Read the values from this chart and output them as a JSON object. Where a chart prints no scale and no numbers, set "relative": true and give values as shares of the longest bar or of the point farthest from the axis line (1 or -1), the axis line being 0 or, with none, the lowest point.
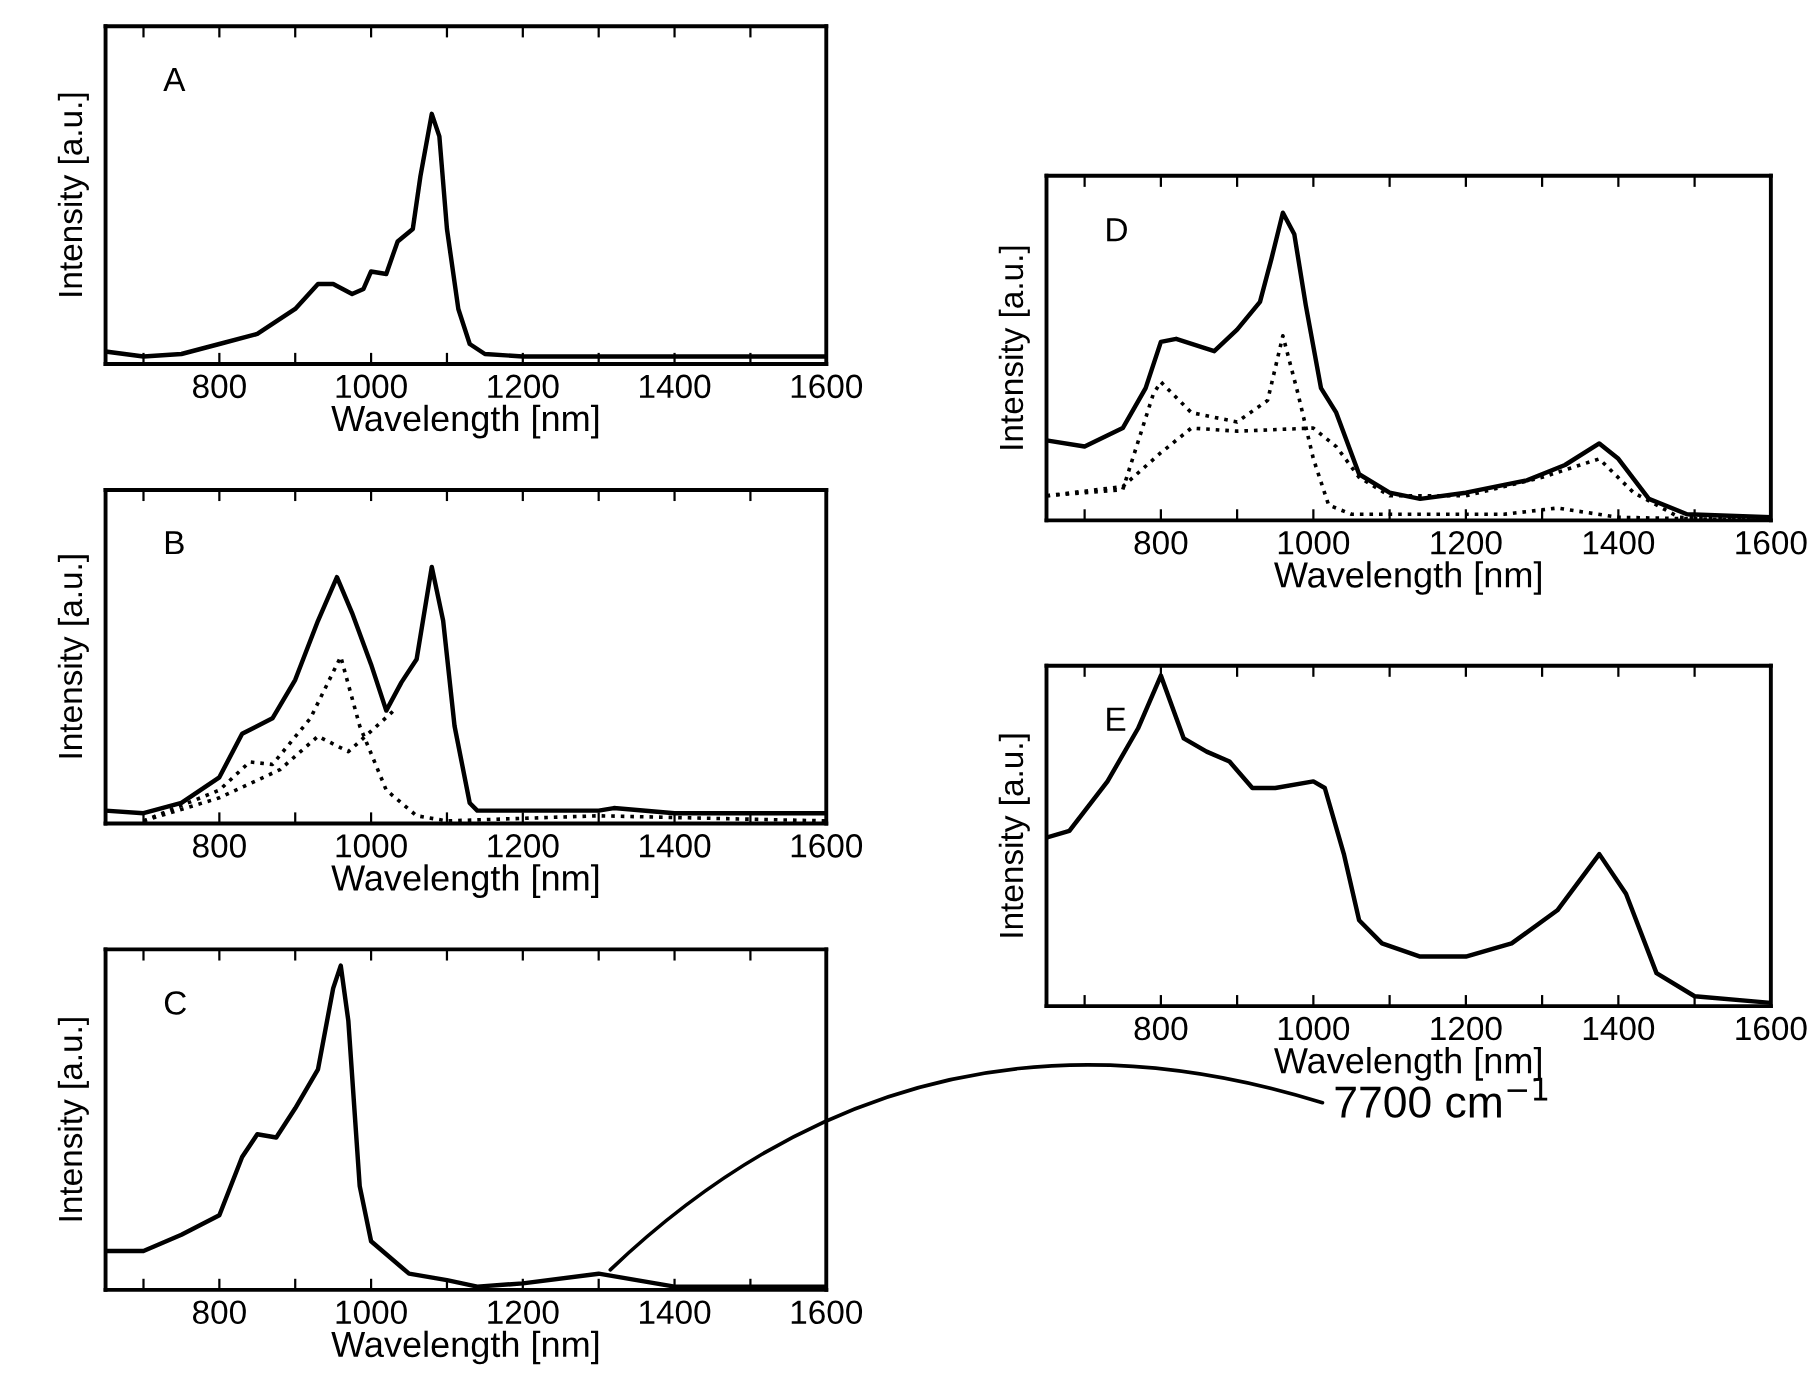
{
  "chart_data": [
    {
      "type": "line",
      "relative": true,
      "annotations": [
        "A"
      ],
      "xlabel": "Wavelength [nm]",
      "ylabel": "Intensity [a.u.]",
      "xlim": [
        650,
        1600
      ],
      "xticks": [
        {
          "value": 700,
          "label": null
        },
        800,
        {
          "value": 900,
          "label": null
        },
        1000,
        {
          "value": 1100,
          "label": null
        },
        1200,
        {
          "value": 1300,
          "label": null
        },
        1400,
        {
          "value": 1500,
          "label": null
        },
        1600
      ],
      "tick_labels": "x",
      "series": [
        {
          "color": "#000000",
          "line_style": "solid",
          "x": [
            650,
            700,
            750,
            800,
            850,
            900,
            930,
            950,
            975,
            990,
            1000,
            1020,
            1035,
            1055,
            1065,
            1080,
            1090,
            1100,
            1115,
            1130,
            1150,
            1200,
            1600
          ],
          "values": [
            0.05,
            0.03,
            0.04,
            0.08,
            0.12,
            0.22,
            0.32,
            0.32,
            0.28,
            0.3,
            0.37,
            0.36,
            0.49,
            0.54,
            0.75,
            1,
            0.91,
            0.54,
            0.22,
            0.08,
            0.04,
            0.03,
            0.03
          ]
        }
      ]
    },
    {
      "type": "line",
      "relative": true,
      "annotations": [
        "B"
      ],
      "xlabel": "Wavelength [nm]",
      "ylabel": "Intensity [a.u.]",
      "xlim": [
        650,
        1600
      ],
      "xticks": [
        {
          "value": 700,
          "label": null
        },
        800,
        {
          "value": 900,
          "label": null
        },
        1000,
        {
          "value": 1100,
          "label": null
        },
        1200,
        {
          "value": 1300,
          "label": null
        },
        1400,
        {
          "value": 1500,
          "label": null
        },
        1600
      ],
      "tick_labels": "x",
      "series": [
        {
          "color": "#000000",
          "line_style": "solid",
          "x": [
            650,
            700,
            750,
            800,
            830,
            870,
            900,
            930,
            955,
            975,
            1000,
            1020,
            1040,
            1060,
            1080,
            1095,
            1110,
            1130,
            1140,
            1300,
            1320,
            1400,
            1600
          ],
          "values": [
            0.05,
            0.04,
            0.08,
            0.18,
            0.35,
            0.41,
            0.56,
            0.79,
            0.96,
            0.82,
            0.62,
            0.44,
            0.55,
            0.64,
            1,
            0.79,
            0.38,
            0.08,
            0.05,
            0.05,
            0.06,
            0.04,
            0.04
          ]
        },
        {
          "color": "#000000",
          "line_style": "dotted",
          "x": [
            700,
            800,
            840,
            870,
            920,
            960,
            985,
            1020,
            1060,
            1100,
            1300,
            1600
          ],
          "values": [
            0.01,
            0.13,
            0.24,
            0.23,
            0.41,
            0.65,
            0.38,
            0.13,
            0.03,
            0.01,
            0.03,
            0.01
          ]
        },
        {
          "color": "#000000",
          "line_style": "dotted",
          "x": [
            700,
            800,
            880,
            930,
            970,
            1000,
            1030
          ],
          "values": [
            0.01,
            0.1,
            0.21,
            0.34,
            0.28,
            0.36,
            0.44
          ]
        }
      ]
    },
    {
      "type": "line",
      "relative": true,
      "annotations": [
        "C",
        {
          "text": "7700 cm$^{−1}$",
          "x": 1310,
          "y": 0.05
        }
      ],
      "xlabel": "Wavelength [nm]",
      "ylabel": "Intensity [a.u.]",
      "xlim": [
        650,
        1600
      ],
      "xticks": [
        {
          "value": 700,
          "label": null
        },
        800,
        {
          "value": 900,
          "label": null
        },
        1000,
        {
          "value": 1100,
          "label": null
        },
        1200,
        {
          "value": 1300,
          "label": null
        },
        1400,
        {
          "value": 1500,
          "label": null
        },
        1600
      ],
      "tick_labels": "x",
      "series": [
        {
          "color": "#000000",
          "line_style": "solid",
          "x": [
            650,
            700,
            750,
            800,
            830,
            850,
            875,
            900,
            930,
            950,
            960,
            970,
            985,
            1000,
            1050,
            1100,
            1140,
            1200,
            1300,
            1350,
            1400,
            1600
          ],
          "values": [
            0.12,
            0.12,
            0.17,
            0.23,
            0.41,
            0.48,
            0.47,
            0.56,
            0.68,
            0.93,
            1,
            0.83,
            0.32,
            0.15,
            0.05,
            0.03,
            0.01,
            0.02,
            0.05,
            0.03,
            0.01,
            0.01
          ]
        }
      ]
    },
    {
      "type": "line",
      "relative": true,
      "annotations": [
        "D"
      ],
      "xlabel": "Wavelength [nm]",
      "ylabel": "Intensity [a.u.]",
      "xlim": [
        650,
        1600
      ],
      "xticks": [
        {
          "value": 700,
          "label": null
        },
        800,
        {
          "value": 900,
          "label": null
        },
        1000,
        {
          "value": 1100,
          "label": null
        },
        1200,
        {
          "value": 1300,
          "label": null
        },
        1400,
        {
          "value": 1500,
          "label": null
        },
        1600
      ],
      "tick_labels": "x",
      "series": [
        {
          "color": "#000000",
          "line_style": "solid",
          "x": [
            650,
            700,
            750,
            780,
            800,
            820,
            870,
            900,
            930,
            945,
            960,
            975,
            990,
            1010,
            1030,
            1060,
            1100,
            1140,
            1200,
            1280,
            1330,
            1375,
            1400,
            1440,
            1490,
            1600
          ],
          "values": [
            0.26,
            0.24,
            0.3,
            0.43,
            0.58,
            0.59,
            0.55,
            0.62,
            0.71,
            0.85,
            1,
            0.93,
            0.7,
            0.43,
            0.35,
            0.15,
            0.09,
            0.07,
            0.09,
            0.13,
            0.18,
            0.25,
            0.2,
            0.07,
            0.02,
            0.01
          ]
        },
        {
          "color": "#000000",
          "line_style": "dotted",
          "x": [
            650,
            750,
            790,
            800,
            840,
            900,
            940,
            960,
            980,
            1000,
            1020,
            1050,
            1250,
            1320,
            1400,
            1600
          ],
          "values": [
            0.08,
            0.1,
            0.41,
            0.45,
            0.35,
            0.32,
            0.39,
            0.6,
            0.41,
            0.2,
            0.05,
            0.02,
            0.02,
            0.04,
            0.01,
            0
          ]
        },
        {
          "color": "#000000",
          "line_style": "dotted",
          "x": [
            650,
            750,
            800,
            840,
            900,
            1000,
            1030,
            1060,
            1100,
            1200,
            1300,
            1375,
            1420,
            1480,
            1600
          ],
          "values": [
            0.08,
            0.11,
            0.22,
            0.3,
            0.29,
            0.3,
            0.24,
            0.14,
            0.08,
            0.08,
            0.14,
            0.2,
            0.09,
            0.01,
            0
          ]
        }
      ]
    },
    {
      "type": "line",
      "relative": true,
      "annotations": [
        "E"
      ],
      "xlabel": "Wavelength [nm]",
      "ylabel": "Intensity [a.u.]",
      "xlim": [
        650,
        1600
      ],
      "xticks": [
        {
          "value": 700,
          "label": null
        },
        800,
        {
          "value": 900,
          "label": null
        },
        1000,
        {
          "value": 1100,
          "label": null
        },
        1200,
        {
          "value": 1300,
          "label": null
        },
        1400,
        {
          "value": 1500,
          "label": null
        },
        1600
      ],
      "tick_labels": "x",
      "series": [
        {
          "color": "#000000",
          "line_style": "solid",
          "x": [
            650,
            680,
            730,
            770,
            800,
            830,
            860,
            890,
            920,
            950,
            1000,
            1015,
            1040,
            1060,
            1090,
            1140,
            1200,
            1260,
            1320,
            1375,
            1410,
            1450,
            1500,
            1600
          ],
          "values": [
            0.51,
            0.53,
            0.68,
            0.84,
            1,
            0.81,
            0.77,
            0.74,
            0.66,
            0.66,
            0.68,
            0.66,
            0.46,
            0.26,
            0.19,
            0.15,
            0.15,
            0.19,
            0.29,
            0.46,
            0.34,
            0.1,
            0.03,
            0.01
          ]
        }
      ]
    }
  ]
}
